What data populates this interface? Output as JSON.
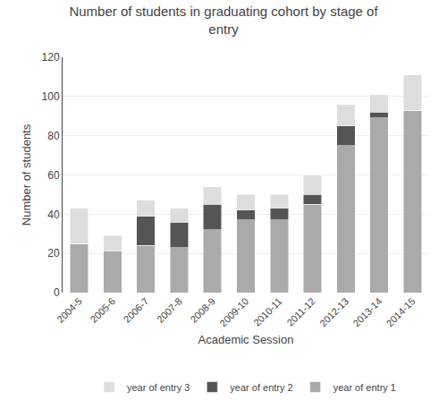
{
  "chart_data": {
    "type": "bar",
    "stacked": true,
    "title": "Number of students in graduating cohort by stage of\nentry",
    "xlabel": "Academic Session",
    "ylabel": "Number of students",
    "categories": [
      "2004-5",
      "2005-6",
      "2006-7",
      "2007-8",
      "2008-9",
      "2009-10",
      "2010-11",
      "2011-12",
      "2012-13",
      "2013-14",
      "2014-15"
    ],
    "series": [
      {
        "name": "year of entry 1",
        "color": "#aaaaaa",
        "values": [
          25,
          21,
          24,
          23,
          32,
          37,
          37,
          45,
          75,
          89,
          93
        ]
      },
      {
        "name": "year of entry 2",
        "color": "#555555",
        "values": [
          0,
          0,
          15,
          13,
          13,
          5,
          6,
          5,
          10,
          3,
          0
        ]
      },
      {
        "name": "year of entry 3",
        "color": "#dddddd",
        "values": [
          18,
          8,
          8,
          7,
          9,
          8,
          7,
          10,
          11,
          9,
          18
        ]
      }
    ],
    "ylim": [
      0,
      120
    ],
    "yticks": [
      0,
      20,
      40,
      60,
      80,
      100,
      120
    ],
    "grid": true,
    "legend": "bottom"
  }
}
